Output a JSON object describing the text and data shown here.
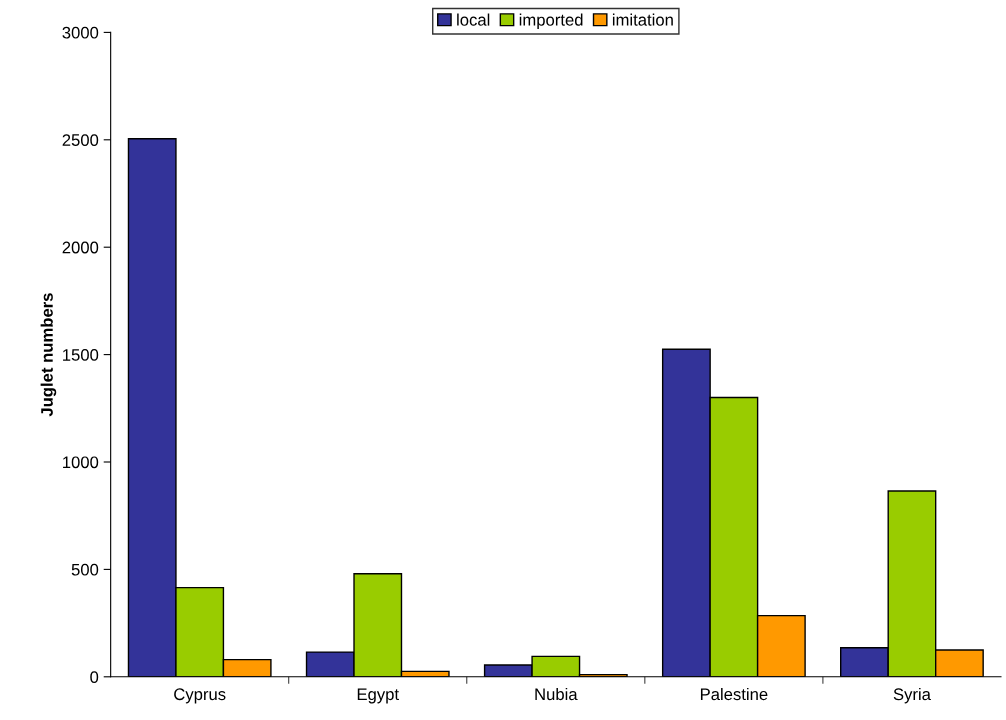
{
  "chart_data": {
    "type": "bar",
    "ylabel": "Juglet numbers",
    "categories": [
      "Cyprus",
      "Egypt",
      "Nubia",
      "Palestine",
      "Syria"
    ],
    "series": [
      {
        "name": "local",
        "color": "#333399",
        "values": [
          2505,
          115,
          55,
          1525,
          135
        ]
      },
      {
        "name": "imported",
        "color": "#99cc00",
        "values": [
          415,
          480,
          95,
          1300,
          865
        ]
      },
      {
        "name": "imitation",
        "color": "#ff9900",
        "values": [
          80,
          25,
          10,
          285,
          125
        ]
      }
    ],
    "ylim": [
      0,
      3000
    ],
    "yticks": [
      0,
      500,
      1000,
      1500,
      2000,
      2500,
      3000
    ],
    "grid": false,
    "legend": "top"
  }
}
